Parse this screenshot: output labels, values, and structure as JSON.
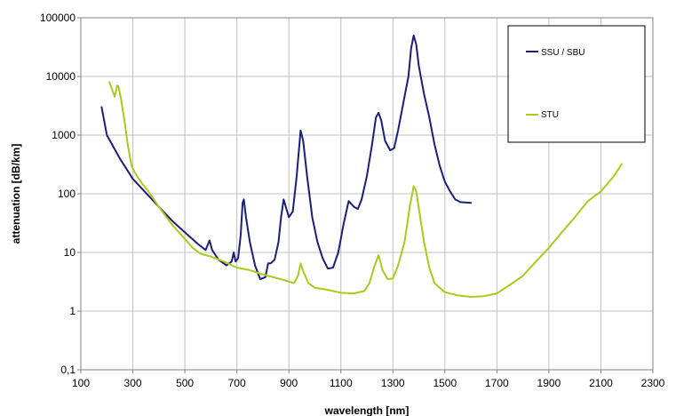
{
  "chart_data": {
    "type": "line",
    "title": "",
    "xlabel": "wavelength [nm]",
    "ylabel": "attenuation [dB/km]",
    "xlim": [
      100,
      2300
    ],
    "ylim": [
      0.1,
      100000
    ],
    "yscale": "log",
    "grid": true,
    "legend_position": "top-right",
    "x_ticks": [
      100,
      300,
      500,
      700,
      900,
      1100,
      1300,
      1500,
      1700,
      1900,
      2100,
      2300
    ],
    "x_tick_labels": [
      "100",
      "300",
      "500",
      "700",
      "900",
      "1100",
      "1300",
      "1500",
      "1700",
      "1900",
      "2100",
      "2300"
    ],
    "y_ticks": [
      0.1,
      1,
      10,
      100,
      1000,
      10000,
      100000
    ],
    "y_tick_labels": [
      "0,1",
      "1",
      "10",
      "100",
      "1000",
      "10000",
      "100000"
    ],
    "series": [
      {
        "name": "SSU / SBU",
        "color": "#1a1f7a",
        "points": [
          [
            180,
            3000
          ],
          [
            200,
            1000
          ],
          [
            250,
            400
          ],
          [
            300,
            180
          ],
          [
            400,
            60
          ],
          [
            450,
            35
          ],
          [
            500,
            22
          ],
          [
            550,
            14
          ],
          [
            580,
            11
          ],
          [
            595,
            16
          ],
          [
            605,
            11
          ],
          [
            630,
            7.5
          ],
          [
            660,
            6
          ],
          [
            680,
            7
          ],
          [
            688,
            10
          ],
          [
            695,
            7
          ],
          [
            705,
            8
          ],
          [
            715,
            20
          ],
          [
            722,
            70
          ],
          [
            727,
            80
          ],
          [
            735,
            40
          ],
          [
            750,
            15
          ],
          [
            770,
            6
          ],
          [
            790,
            3.5
          ],
          [
            810,
            3.8
          ],
          [
            820,
            6.5
          ],
          [
            830,
            6.5
          ],
          [
            845,
            7.5
          ],
          [
            860,
            15
          ],
          [
            870,
            40
          ],
          [
            880,
            80
          ],
          [
            888,
            60
          ],
          [
            900,
            40
          ],
          [
            915,
            50
          ],
          [
            930,
            200
          ],
          [
            945,
            1200
          ],
          [
            955,
            800
          ],
          [
            970,
            200
          ],
          [
            990,
            40
          ],
          [
            1010,
            15
          ],
          [
            1030,
            8
          ],
          [
            1050,
            5.3
          ],
          [
            1070,
            5.5
          ],
          [
            1090,
            10
          ],
          [
            1110,
            30
          ],
          [
            1130,
            75
          ],
          [
            1150,
            60
          ],
          [
            1165,
            55
          ],
          [
            1180,
            80
          ],
          [
            1200,
            200
          ],
          [
            1220,
            700
          ],
          [
            1235,
            2000
          ],
          [
            1245,
            2400
          ],
          [
            1255,
            1800
          ],
          [
            1270,
            800
          ],
          [
            1290,
            550
          ],
          [
            1305,
            600
          ],
          [
            1320,
            1200
          ],
          [
            1340,
            3500
          ],
          [
            1360,
            10000
          ],
          [
            1370,
            30000
          ],
          [
            1380,
            50000
          ],
          [
            1390,
            35000
          ],
          [
            1400,
            15000
          ],
          [
            1420,
            5000
          ],
          [
            1440,
            2000
          ],
          [
            1460,
            700
          ],
          [
            1480,
            300
          ],
          [
            1500,
            160
          ],
          [
            1520,
            110
          ],
          [
            1540,
            80
          ],
          [
            1560,
            72
          ],
          [
            1600,
            70
          ]
        ]
      },
      {
        "name": "STU",
        "color": "#a8cc1a",
        "points": [
          [
            210,
            8000
          ],
          [
            220,
            6000
          ],
          [
            230,
            4500
          ],
          [
            240,
            7000
          ],
          [
            245,
            6800
          ],
          [
            255,
            4000
          ],
          [
            270,
            1500
          ],
          [
            280,
            700
          ],
          [
            295,
            300
          ],
          [
            310,
            220
          ],
          [
            330,
            160
          ],
          [
            360,
            110
          ],
          [
            400,
            60
          ],
          [
            450,
            30
          ],
          [
            500,
            17
          ],
          [
            530,
            12
          ],
          [
            560,
            9.5
          ],
          [
            600,
            8.5
          ],
          [
            650,
            7
          ],
          [
            700,
            5.5
          ],
          [
            750,
            5
          ],
          [
            800,
            4.2
          ],
          [
            850,
            3.7
          ],
          [
            900,
            3.2
          ],
          [
            920,
            3
          ],
          [
            935,
            4
          ],
          [
            945,
            6.5
          ],
          [
            955,
            4.8
          ],
          [
            975,
            3
          ],
          [
            1000,
            2.5
          ],
          [
            1050,
            2.3
          ],
          [
            1100,
            2.05
          ],
          [
            1150,
            2
          ],
          [
            1190,
            2.2
          ],
          [
            1210,
            3
          ],
          [
            1230,
            6
          ],
          [
            1245,
            9
          ],
          [
            1260,
            5
          ],
          [
            1280,
            3.5
          ],
          [
            1300,
            3.6
          ],
          [
            1320,
            6
          ],
          [
            1345,
            15
          ],
          [
            1365,
            60
          ],
          [
            1380,
            135
          ],
          [
            1390,
            110
          ],
          [
            1405,
            40
          ],
          [
            1420,
            15
          ],
          [
            1440,
            5.5
          ],
          [
            1460,
            3
          ],
          [
            1480,
            2.5
          ],
          [
            1500,
            2.1
          ],
          [
            1550,
            1.85
          ],
          [
            1600,
            1.75
          ],
          [
            1650,
            1.8
          ],
          [
            1700,
            2
          ],
          [
            1750,
            2.8
          ],
          [
            1800,
            4
          ],
          [
            1850,
            7
          ],
          [
            1900,
            12
          ],
          [
            1950,
            22
          ],
          [
            2000,
            40
          ],
          [
            2050,
            75
          ],
          [
            2100,
            110
          ],
          [
            2150,
            200
          ],
          [
            2180,
            320
          ]
        ]
      }
    ]
  }
}
